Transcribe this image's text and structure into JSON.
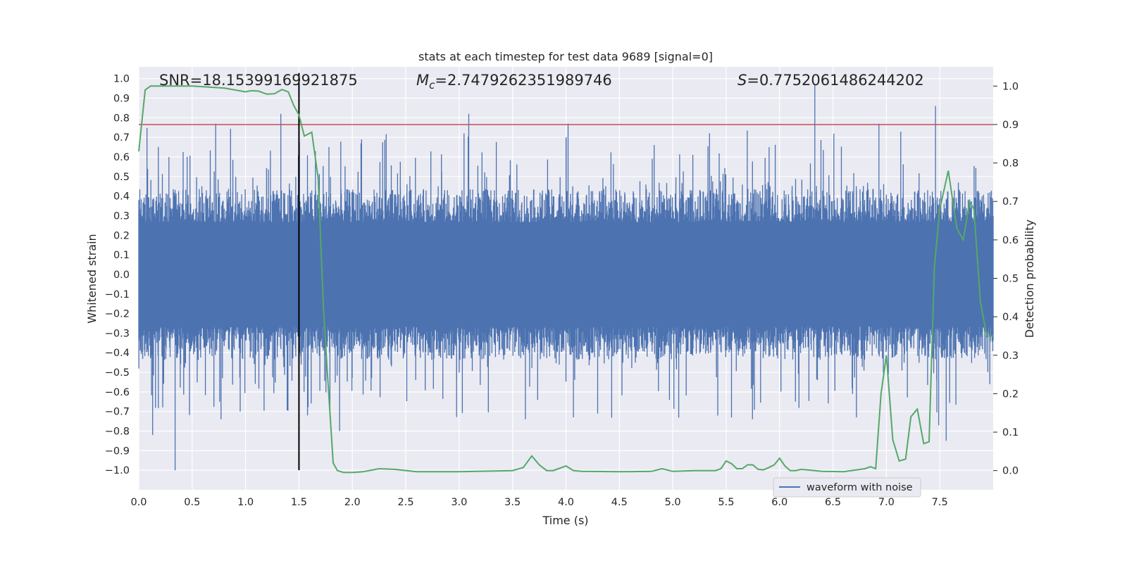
{
  "chart_data": {
    "type": "line",
    "title": "stats at each timestep for test data 9689 [signal=0]",
    "xlabel": "Time (s)",
    "ylabel_left": "Whitened strain",
    "ylabel_right": "Detection probability",
    "xlim": [
      0.0,
      8.0
    ],
    "ylim_left": [
      -1.1,
      1.06
    ],
    "ylim_right": [
      -0.05,
      1.05
    ],
    "x_ticks": [
      "0.0",
      "0.5",
      "1.0",
      "1.5",
      "2.0",
      "2.5",
      "3.0",
      "3.5",
      "4.0",
      "4.5",
      "5.0",
      "5.5",
      "6.0",
      "6.5",
      "7.0",
      "7.5"
    ],
    "y_left_ticks": [
      "1.0",
      "0.9",
      "0.8",
      "0.7",
      "0.6",
      "0.5",
      "0.4",
      "0.3",
      "0.2",
      "0.1",
      "0.0",
      "-0.1",
      "-0.2",
      "-0.3",
      "-0.4",
      "-0.5",
      "-0.6",
      "-0.7",
      "-0.8",
      "-0.9",
      "-1.0"
    ],
    "y_right_ticks": [
      "1.0",
      "0.9",
      "0.8",
      "0.7",
      "0.6",
      "0.5",
      "0.4",
      "0.3",
      "0.2",
      "0.1",
      "0.0"
    ],
    "grid": true,
    "annotations": {
      "snr": "SNR=18.15399169921875",
      "mc_symbol": "M",
      "mc_sub": "c",
      "mc_value": "=2.7479262351989746",
      "s_symbol": "S",
      "s_value": "=0.7752061486244202"
    },
    "legend": {
      "entries": [
        "waveform with noise"
      ],
      "position": "lower-right"
    },
    "colors": {
      "background": "#eaeaf2",
      "grid": "#ffffff",
      "waveform": "#4c72b0",
      "probability": "#55a868",
      "threshold": "#c44e52",
      "marker": "#000000"
    },
    "series": [
      {
        "name": "waveform with noise",
        "axis": "left",
        "description_style": "dense noise",
        "envelope_p95": 0.38,
        "spikes": [
          {
            "x": 0.34,
            "y": -1.0
          },
          {
            "x": 0.13,
            "y": -0.82
          },
          {
            "x": 0.72,
            "y": 0.77
          },
          {
            "x": 0.77,
            "y": -0.74
          },
          {
            "x": 0.95,
            "y": -0.7
          },
          {
            "x": 1.33,
            "y": 0.82
          },
          {
            "x": 1.58,
            "y": -0.72
          },
          {
            "x": 1.88,
            "y": -0.8
          },
          {
            "x": 3.09,
            "y": 0.82
          },
          {
            "x": 3.62,
            "y": -0.74
          },
          {
            "x": 4.02,
            "y": 0.77
          },
          {
            "x": 5.55,
            "y": -0.73
          },
          {
            "x": 6.33,
            "y": 0.97
          },
          {
            "x": 6.72,
            "y": -0.73
          },
          {
            "x": 6.93,
            "y": 0.77
          },
          {
            "x": 7.46,
            "y": 0.86
          },
          {
            "x": 7.49,
            "y": -0.77
          },
          {
            "x": 7.56,
            "y": -0.85
          }
        ]
      },
      {
        "name": "",
        "axis": "right",
        "x": [
          0.0,
          0.06,
          0.11,
          0.2,
          0.5,
          0.8,
          1.0,
          1.05,
          1.12,
          1.2,
          1.27,
          1.34,
          1.4,
          1.45,
          1.5,
          1.55,
          1.62,
          1.68,
          1.73,
          1.76,
          1.82,
          1.86,
          1.92,
          2.0,
          2.1,
          2.25,
          2.4,
          2.6,
          3.0,
          3.5,
          3.6,
          3.68,
          3.75,
          3.82,
          3.88,
          3.93,
          4.0,
          4.07,
          4.15,
          4.5,
          4.8,
          4.9,
          5.0,
          5.2,
          5.4,
          5.45,
          5.5,
          5.55,
          5.6,
          5.65,
          5.7,
          5.75,
          5.8,
          5.85,
          5.9,
          5.95,
          6.0,
          6.05,
          6.1,
          6.15,
          6.2,
          6.25,
          6.4,
          6.6,
          6.8,
          6.85,
          6.9,
          6.95,
          7.0,
          7.06,
          7.12,
          7.18,
          7.23,
          7.29,
          7.35,
          7.4,
          7.45,
          7.5,
          7.58,
          7.66,
          7.72,
          7.78,
          7.82,
          7.88,
          7.94,
          8.0
        ],
        "y": [
          0.83,
          0.99,
          1.0,
          1.0,
          1.0,
          0.995,
          0.985,
          0.988,
          0.987,
          0.979,
          0.98,
          0.991,
          0.985,
          0.95,
          0.925,
          0.87,
          0.88,
          0.76,
          0.42,
          0.28,
          0.02,
          0.0,
          -0.005,
          -0.005,
          -0.003,
          0.005,
          0.003,
          -0.003,
          -0.003,
          0.0,
          0.008,
          0.038,
          0.015,
          0.0,
          0.0,
          0.005,
          0.012,
          0.0,
          -0.002,
          -0.003,
          -0.002,
          0.005,
          -0.002,
          0.0,
          0.0,
          0.005,
          0.025,
          0.018,
          0.005,
          0.005,
          0.015,
          0.015,
          0.003,
          0.002,
          0.008,
          0.015,
          0.032,
          0.012,
          0.0,
          0.0,
          0.003,
          0.002,
          -0.002,
          -0.003,
          0.005,
          0.01,
          0.005,
          0.2,
          0.3,
          0.08,
          0.025,
          0.03,
          0.14,
          0.16,
          0.07,
          0.075,
          0.53,
          0.68,
          0.78,
          0.63,
          0.6,
          0.7,
          0.68,
          0.44,
          0.35,
          0.35
        ]
      }
    ],
    "threshold": {
      "axis": "right",
      "value": 0.9
    },
    "marker_line": {
      "x": 1.5,
      "y_from": -1.0,
      "y_to": 1.0
    }
  }
}
